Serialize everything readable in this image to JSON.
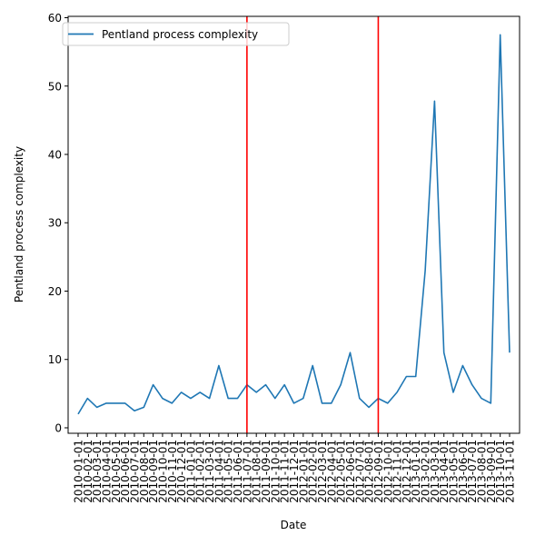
{
  "chart_data": {
    "type": "line",
    "title": "",
    "xlabel": "Date",
    "ylabel": "Pentland process complexity",
    "ylim": [
      -0.8,
      60.2
    ],
    "yticks": [
      0,
      10,
      20,
      30,
      40,
      50,
      60
    ],
    "grid": false,
    "legend": {
      "position": "upper left"
    },
    "x": [
      "2010-01-01",
      "2010-02-01",
      "2010-03-01",
      "2010-04-01",
      "2010-05-01",
      "2010-06-01",
      "2010-07-01",
      "2010-08-01",
      "2010-09-01",
      "2010-10-01",
      "2010-11-01",
      "2010-12-01",
      "2011-01-01",
      "2011-02-01",
      "2011-03-01",
      "2011-04-01",
      "2011-05-01",
      "2011-06-01",
      "2011-07-01",
      "2011-08-01",
      "2011-09-01",
      "2011-10-01",
      "2011-11-01",
      "2011-12-01",
      "2012-01-01",
      "2012-02-01",
      "2012-03-01",
      "2012-04-01",
      "2012-05-01",
      "2012-06-01",
      "2012-07-01",
      "2012-08-01",
      "2012-09-01",
      "2012-10-01",
      "2012-11-01",
      "2012-12-01",
      "2013-01-01",
      "2013-02-01",
      "2013-03-01",
      "2013-04-01",
      "2013-05-01",
      "2013-06-01",
      "2013-07-01",
      "2013-08-01",
      "2013-09-01",
      "2013-10-01",
      "2013-11-01"
    ],
    "series": [
      {
        "name": "Pentland process complexity",
        "color": "#1f77b4",
        "values": [
          2.0,
          4.3,
          3.0,
          3.6,
          3.6,
          3.6,
          2.5,
          3.0,
          6.3,
          4.3,
          3.6,
          5.2,
          4.3,
          5.2,
          4.3,
          9.1,
          4.3,
          4.3,
          6.3,
          5.2,
          6.3,
          4.3,
          6.3,
          3.6,
          4.3,
          9.1,
          3.6,
          3.6,
          6.3,
          11.0,
          4.3,
          3.0,
          4.3,
          3.6,
          5.2,
          7.5,
          7.5,
          23.0,
          47.8,
          11.0,
          5.2,
          9.1,
          6.3,
          4.3,
          3.6,
          57.5,
          11.0
        ]
      }
    ],
    "reference_lines": [
      {
        "x": "2011-07-01",
        "color": "#ff0000"
      },
      {
        "x": "2012-09-01",
        "color": "#ff0000"
      }
    ]
  }
}
